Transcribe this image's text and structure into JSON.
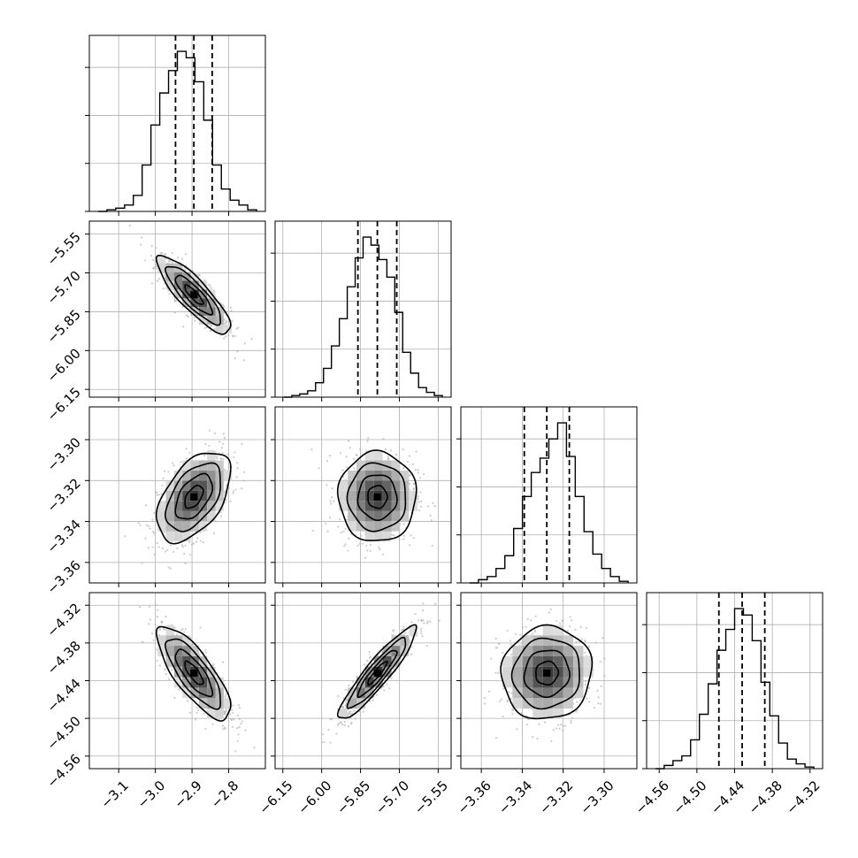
{
  "chart_data": {
    "type": "corner",
    "parameters": [
      {
        "axis_range": [
          -3.18,
          -2.7
        ],
        "ticks": [
          -3.1,
          -3.0,
          -2.9,
          -2.8
        ],
        "tick_labels": [
          "−3.1",
          "−3.0",
          "−2.9",
          "−2.8"
        ],
        "quantiles": [
          -2.945,
          -2.895,
          -2.845
        ],
        "hist_max": 1.0
      },
      {
        "axis_range": [
          -6.18,
          -5.5
        ],
        "ticks": [
          -6.15,
          -6.0,
          -5.85,
          -5.7,
          -5.55
        ],
        "tick_labels": [
          "−6.15",
          "−6.00",
          "−5.85",
          "−5.70",
          "−5.55"
        ],
        "quantiles": [
          -5.86,
          -5.785,
          -5.71
        ],
        "hist_max": 1.0
      },
      {
        "axis_range": [
          -3.37,
          -3.284
        ],
        "ticks": [
          -3.36,
          -3.34,
          -3.32,
          -3.3
        ],
        "tick_labels": [
          "−3.36",
          "−3.34",
          "−3.32",
          "−3.30"
        ],
        "quantiles": [
          -3.339,
          -3.328,
          -3.317
        ],
        "hist_max": 1.0
      },
      {
        "axis_range": [
          -4.58,
          -4.3
        ],
        "ticks": [
          -4.56,
          -4.5,
          -4.44,
          -4.38,
          -4.32
        ],
        "tick_labels": [
          "−4.56",
          "−4.50",
          "−4.44",
          "−4.38",
          "−4.32"
        ],
        "quantiles": [
          -4.465,
          -4.428,
          -4.392
        ],
        "hist_max": 1.0
      }
    ],
    "histograms": [
      [
        0.0,
        0.01,
        0.02,
        0.04,
        0.1,
        0.29,
        0.54,
        0.74,
        0.88,
        1.0,
        0.96,
        0.81,
        0.57,
        0.29,
        0.14,
        0.07,
        0.04,
        0.01
      ],
      [
        0.0,
        0.01,
        0.02,
        0.04,
        0.09,
        0.18,
        0.32,
        0.49,
        0.69,
        0.87,
        1.0,
        0.95,
        0.86,
        0.75,
        0.53,
        0.28,
        0.15,
        0.06,
        0.03,
        0.01
      ],
      [
        0.0,
        0.02,
        0.04,
        0.09,
        0.17,
        0.34,
        0.54,
        0.69,
        0.78,
        0.9,
        1.0,
        0.79,
        0.54,
        0.32,
        0.18,
        0.09,
        0.04,
        0.01
      ],
      [
        0.0,
        0.02,
        0.05,
        0.08,
        0.18,
        0.34,
        0.53,
        0.74,
        0.87,
        1.0,
        0.96,
        0.8,
        0.54,
        0.33,
        0.16,
        0.06,
        0.03,
        0.01
      ]
    ],
    "correlations": [
      {
        "pair": [
          0,
          1
        ],
        "rho": -0.85,
        "center": [
          -2.895,
          -5.785
        ],
        "sigma": [
          0.05,
          0.075
        ]
      },
      {
        "pair": [
          0,
          2
        ],
        "rho": 0.5,
        "center": [
          -2.895,
          -3.328
        ],
        "sigma": [
          0.05,
          0.011
        ]
      },
      {
        "pair": [
          1,
          2
        ],
        "rho": 0.0,
        "center": [
          -5.785,
          -3.328
        ],
        "sigma": [
          0.075,
          0.011
        ]
      },
      {
        "pair": [
          0,
          3
        ],
        "rho": -0.78,
        "center": [
          -2.895,
          -4.428
        ],
        "sigma": [
          0.05,
          0.037
        ]
      },
      {
        "pair": [
          1,
          3
        ],
        "rho": 0.92,
        "center": [
          -5.785,
          -4.428
        ],
        "sigma": [
          0.075,
          0.037
        ]
      },
      {
        "pair": [
          2,
          3
        ],
        "rho": 0.05,
        "center": [
          -3.328,
          -4.428
        ],
        "sigma": [
          0.011,
          0.037
        ]
      }
    ],
    "contour_levels_sigma": [
      0.5,
      1.0,
      1.5,
      2.0
    ],
    "grid": true,
    "colors": {
      "frame": "#000000",
      "grid": "#b0b0b0",
      "points": "#b5b5b5",
      "density": "#000000"
    }
  }
}
